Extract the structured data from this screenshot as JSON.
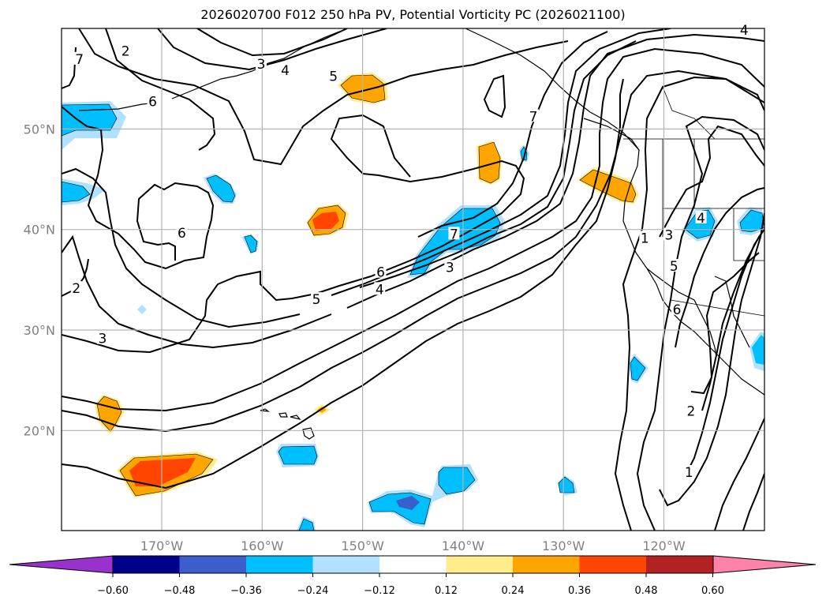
{
  "title": "2026020700 F012 250 hPa PV, Potential Vorticity PC (2026021100)",
  "map": {
    "projection": "lat-lon",
    "region": "North Pacific / western North America",
    "lon_range": [
      -180,
      -110
    ],
    "lat_range": [
      10,
      60
    ],
    "lat_ticks": [
      {
        "value": 50,
        "label": "50°N"
      },
      {
        "value": 40,
        "label": "40°N"
      },
      {
        "value": 30,
        "label": "30°N"
      },
      {
        "value": 20,
        "label": "20°N"
      }
    ],
    "lon_ticks": [
      {
        "value": -170,
        "label": "170°W"
      },
      {
        "value": -160,
        "label": "160°W"
      },
      {
        "value": -150,
        "label": "150°W"
      },
      {
        "value": -140,
        "label": "140°W"
      },
      {
        "value": -130,
        "label": "130°W"
      },
      {
        "value": -120,
        "label": "120°W"
      }
    ],
    "gridlines": true,
    "contour_field": "250 hPa PV",
    "contour_labels": [
      {
        "text": "2",
        "lon": -173.6,
        "lat": 57.6
      },
      {
        "text": "3",
        "lon": -160.1,
        "lat": 56.3
      },
      {
        "text": "4",
        "lon": -157.7,
        "lat": 55.7
      },
      {
        "text": "5",
        "lon": -152.9,
        "lat": 55.1
      },
      {
        "text": "7",
        "lon": -178.2,
        "lat": 56.8
      },
      {
        "text": "6",
        "lon": -170.9,
        "lat": 52.6
      },
      {
        "text": "7",
        "lon": -133.0,
        "lat": 51.1
      },
      {
        "text": "6",
        "lon": -168.0,
        "lat": 39.5
      },
      {
        "text": "7",
        "lon": -140.9,
        "lat": 39.4
      },
      {
        "text": "6",
        "lon": -148.2,
        "lat": 35.6
      },
      {
        "text": "3",
        "lon": -141.3,
        "lat": 36.1
      },
      {
        "text": "4",
        "lon": -148.3,
        "lat": 33.9
      },
      {
        "text": "5",
        "lon": -154.6,
        "lat": 32.9
      },
      {
        "text": "2",
        "lon": -178.5,
        "lat": 34.0
      },
      {
        "text": "3",
        "lon": -175.9,
        "lat": 29.0
      },
      {
        "text": "4",
        "lon": -112.0,
        "lat": 59.7
      },
      {
        "text": "1",
        "lon": -121.9,
        "lat": 39.0
      },
      {
        "text": "3",
        "lon": -119.5,
        "lat": 39.3
      },
      {
        "text": "4",
        "lon": -116.3,
        "lat": 41.0
      },
      {
        "text": "5",
        "lon": -119.0,
        "lat": 36.2
      },
      {
        "text": "6",
        "lon": -118.7,
        "lat": 31.9
      },
      {
        "text": "2",
        "lon": -117.3,
        "lat": 21.8
      },
      {
        "text": "1",
        "lon": -117.5,
        "lat": 15.7
      }
    ],
    "fill_field": "Potential Vorticity PC anomaly"
  },
  "colorbar": {
    "ticks": [
      "−0.60",
      "−0.48",
      "−0.36",
      "−0.24",
      "−0.12",
      "0.12",
      "0.24",
      "0.36",
      "0.48",
      "0.60"
    ],
    "bins": [
      {
        "range": "< -0.60",
        "color": "#9932CC"
      },
      {
        "range": "-0.60 to -0.48",
        "color": "#00008B"
      },
      {
        "range": "-0.48 to -0.36",
        "color": "#3A5FCD"
      },
      {
        "range": "-0.36 to -0.24",
        "color": "#00BFFF"
      },
      {
        "range": "-0.24 to -0.12",
        "color": "#B0E2FF"
      },
      {
        "range": "-0.12 to 0.12",
        "color": "#FFFFFF"
      },
      {
        "range": "0.12 to 0.24",
        "color": "#FFEC8B"
      },
      {
        "range": "0.24 to 0.36",
        "color": "#FFA500"
      },
      {
        "range": "0.36 to 0.48",
        "color": "#FF4500"
      },
      {
        "range": "0.48 to 0.60",
        "color": "#B22222"
      },
      {
        "range": "> 0.60",
        "color": "#FF82AB"
      }
    ]
  }
}
